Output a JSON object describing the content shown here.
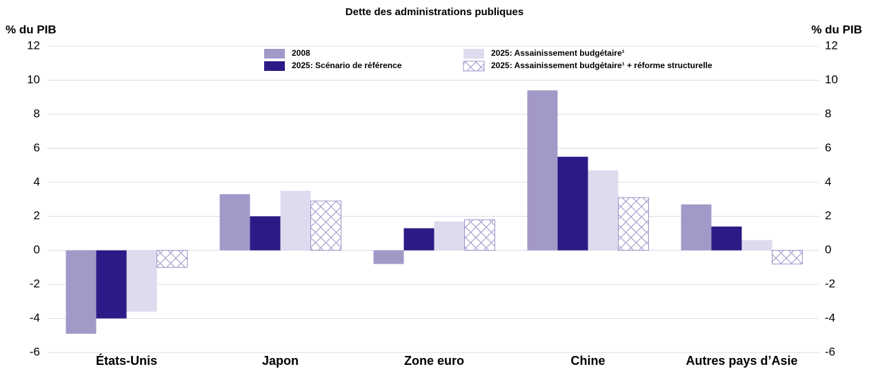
{
  "chart_data": {
    "type": "bar",
    "title": "Dette des administrations publiques",
    "y_label": "% du PIB",
    "y2_label": "% du PIB",
    "categories": [
      "États-Unis",
      "Japon",
      "Zone euro",
      "Chine",
      "Autres pays d’Asie"
    ],
    "series": [
      {
        "name": "2008",
        "color": "#a399c8",
        "values": [
          -4.9,
          3.3,
          -0.8,
          9.4,
          2.7
        ]
      },
      {
        "name": "2025: Scénario de référence",
        "color": "#2e1a87",
        "values": [
          -4.0,
          2.0,
          1.3,
          5.5,
          1.4
        ]
      },
      {
        "name": "2025: Assainissement budgétaire¹",
        "color": "#dedbee",
        "values": [
          -3.6,
          3.5,
          1.7,
          4.7,
          0.6
        ]
      },
      {
        "name": "2025: Assainissement budgétaire¹ + réforme structurelle",
        "color": "#9d92c9",
        "hatch": true,
        "values": [
          -1.0,
          2.9,
          1.8,
          3.1,
          -0.8
        ]
      }
    ],
    "ylim": [
      -6,
      12
    ],
    "yticks": [
      -6,
      -4,
      -2,
      0,
      2,
      4,
      6,
      8,
      10,
      12
    ],
    "y2lim": [
      -6,
      12
    ],
    "y2ticks": [
      -6,
      -4,
      -2,
      0,
      2,
      4,
      6,
      8,
      10,
      12
    ],
    "grid": true
  }
}
